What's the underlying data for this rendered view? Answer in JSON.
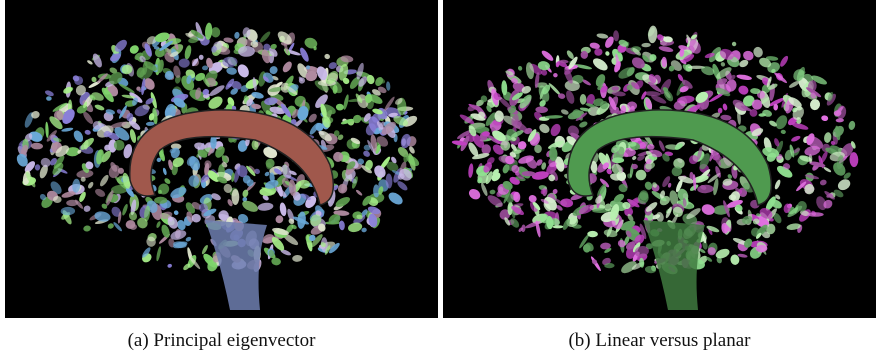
{
  "figures": [
    {
      "caption": "(a) Principal eigenvector"
    },
    {
      "caption": "(b) Linear versus planar"
    }
  ]
}
